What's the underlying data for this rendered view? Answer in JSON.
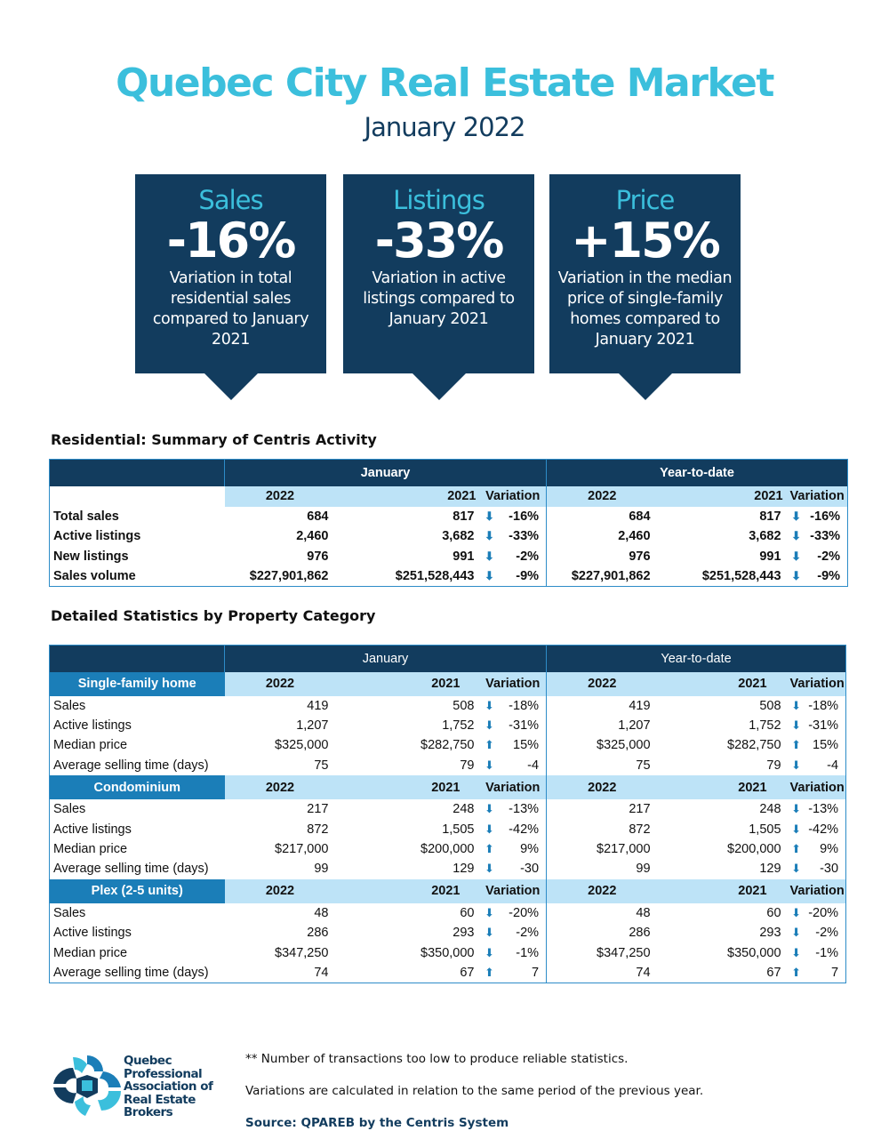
{
  "header": {
    "title": "Quebec City Real Estate Market",
    "subtitle": "January 2022"
  },
  "cards": [
    {
      "heading": "Sales",
      "value": "-16%",
      "description": "Variation in total residential sales compared to January 2021"
    },
    {
      "heading": "Listings",
      "value": "-33%",
      "description": "Variation in active listings compared to January 2021"
    },
    {
      "heading": "Price",
      "value": "+15%",
      "description": "Variation in the median price of single-family homes compared to January 2021"
    }
  ],
  "summary": {
    "title": "Residential: Summary of Centris Activity",
    "groups": [
      "January",
      "Year-to-date"
    ],
    "columns": [
      "2022",
      "2021",
      "Variation"
    ],
    "rows": [
      {
        "label": "Total sales",
        "jan": [
          "684",
          "817",
          "down",
          "-16%"
        ],
        "ytd": [
          "684",
          "817",
          "down",
          "-16%"
        ]
      },
      {
        "label": "Active listings",
        "jan": [
          "2,460",
          "3,682",
          "down",
          "-33%"
        ],
        "ytd": [
          "2,460",
          "3,682",
          "down",
          "-33%"
        ]
      },
      {
        "label": "New listings",
        "jan": [
          "976",
          "991",
          "down",
          "-2%"
        ],
        "ytd": [
          "976",
          "991",
          "down",
          "-2%"
        ]
      },
      {
        "label": "Sales volume",
        "jan": [
          "$227,901,862",
          "$251,528,443",
          "down",
          "-9%"
        ],
        "ytd": [
          "$227,901,862",
          "$251,528,443",
          "down",
          "-9%"
        ]
      }
    ]
  },
  "detailed": {
    "title": "Detailed Statistics by Property Category",
    "groups": [
      "January",
      "Year-to-date"
    ],
    "columns": [
      "2022",
      "2021",
      "Variation"
    ],
    "categories": [
      {
        "name": "Single-family home",
        "rows": [
          {
            "label": "Sales",
            "jan": [
              "419",
              "508",
              "down",
              "-18%"
            ],
            "ytd": [
              "419",
              "508",
              "down",
              "-18%"
            ]
          },
          {
            "label": "Active listings",
            "jan": [
              "1,207",
              "1,752",
              "down",
              "-31%"
            ],
            "ytd": [
              "1,207",
              "1,752",
              "down",
              "-31%"
            ]
          },
          {
            "label": "Median price",
            "jan": [
              "$325,000",
              "$282,750",
              "up",
              "15%"
            ],
            "ytd": [
              "$325,000",
              "$282,750",
              "up",
              "15%"
            ]
          },
          {
            "label": "Average selling time (days)",
            "jan": [
              "75",
              "79",
              "down",
              "-4"
            ],
            "ytd": [
              "75",
              "79",
              "down",
              "-4"
            ]
          }
        ]
      },
      {
        "name": "Condominium",
        "rows": [
          {
            "label": "Sales",
            "jan": [
              "217",
              "248",
              "down",
              "-13%"
            ],
            "ytd": [
              "217",
              "248",
              "down",
              "-13%"
            ]
          },
          {
            "label": "Active listings",
            "jan": [
              "872",
              "1,505",
              "down",
              "-42%"
            ],
            "ytd": [
              "872",
              "1,505",
              "down",
              "-42%"
            ]
          },
          {
            "label": "Median price",
            "jan": [
              "$217,000",
              "$200,000",
              "up",
              "9%"
            ],
            "ytd": [
              "$217,000",
              "$200,000",
              "up",
              "9%"
            ]
          },
          {
            "label": "Average selling time (days)",
            "jan": [
              "99",
              "129",
              "down",
              "-30"
            ],
            "ytd": [
              "99",
              "129",
              "down",
              "-30"
            ]
          }
        ]
      },
      {
        "name": "Plex (2-5 units)",
        "rows": [
          {
            "label": "Sales",
            "jan": [
              "48",
              "60",
              "down",
              "-20%"
            ],
            "ytd": [
              "48",
              "60",
              "down",
              "-20%"
            ]
          },
          {
            "label": "Active listings",
            "jan": [
              "286",
              "293",
              "down",
              "-2%"
            ],
            "ytd": [
              "286",
              "293",
              "down",
              "-2%"
            ]
          },
          {
            "label": "Median price",
            "jan": [
              "$347,250",
              "$350,000",
              "down",
              "-1%"
            ],
            "ytd": [
              "$347,250",
              "$350,000",
              "down",
              "-1%"
            ]
          },
          {
            "label": "Average selling time (days)",
            "jan": [
              "74",
              "67",
              "up",
              "7"
            ],
            "ytd": [
              "74",
              "67",
              "up",
              "7"
            ]
          }
        ]
      }
    ]
  },
  "footer": {
    "logo_text": "Quebec Professional Association of Real Estate Brokers",
    "note1": "**  Number of transactions too low to produce reliable statistics.",
    "note2": "Variations are calculated in relation to the same period of the previous year.",
    "source": "Source: QPAREB by the Centris System"
  },
  "colors": {
    "navy": "#123c5e",
    "cyan": "#3bbfdc",
    "light_blue": "#bde3f7",
    "category_blue": "#1b7eb8"
  }
}
